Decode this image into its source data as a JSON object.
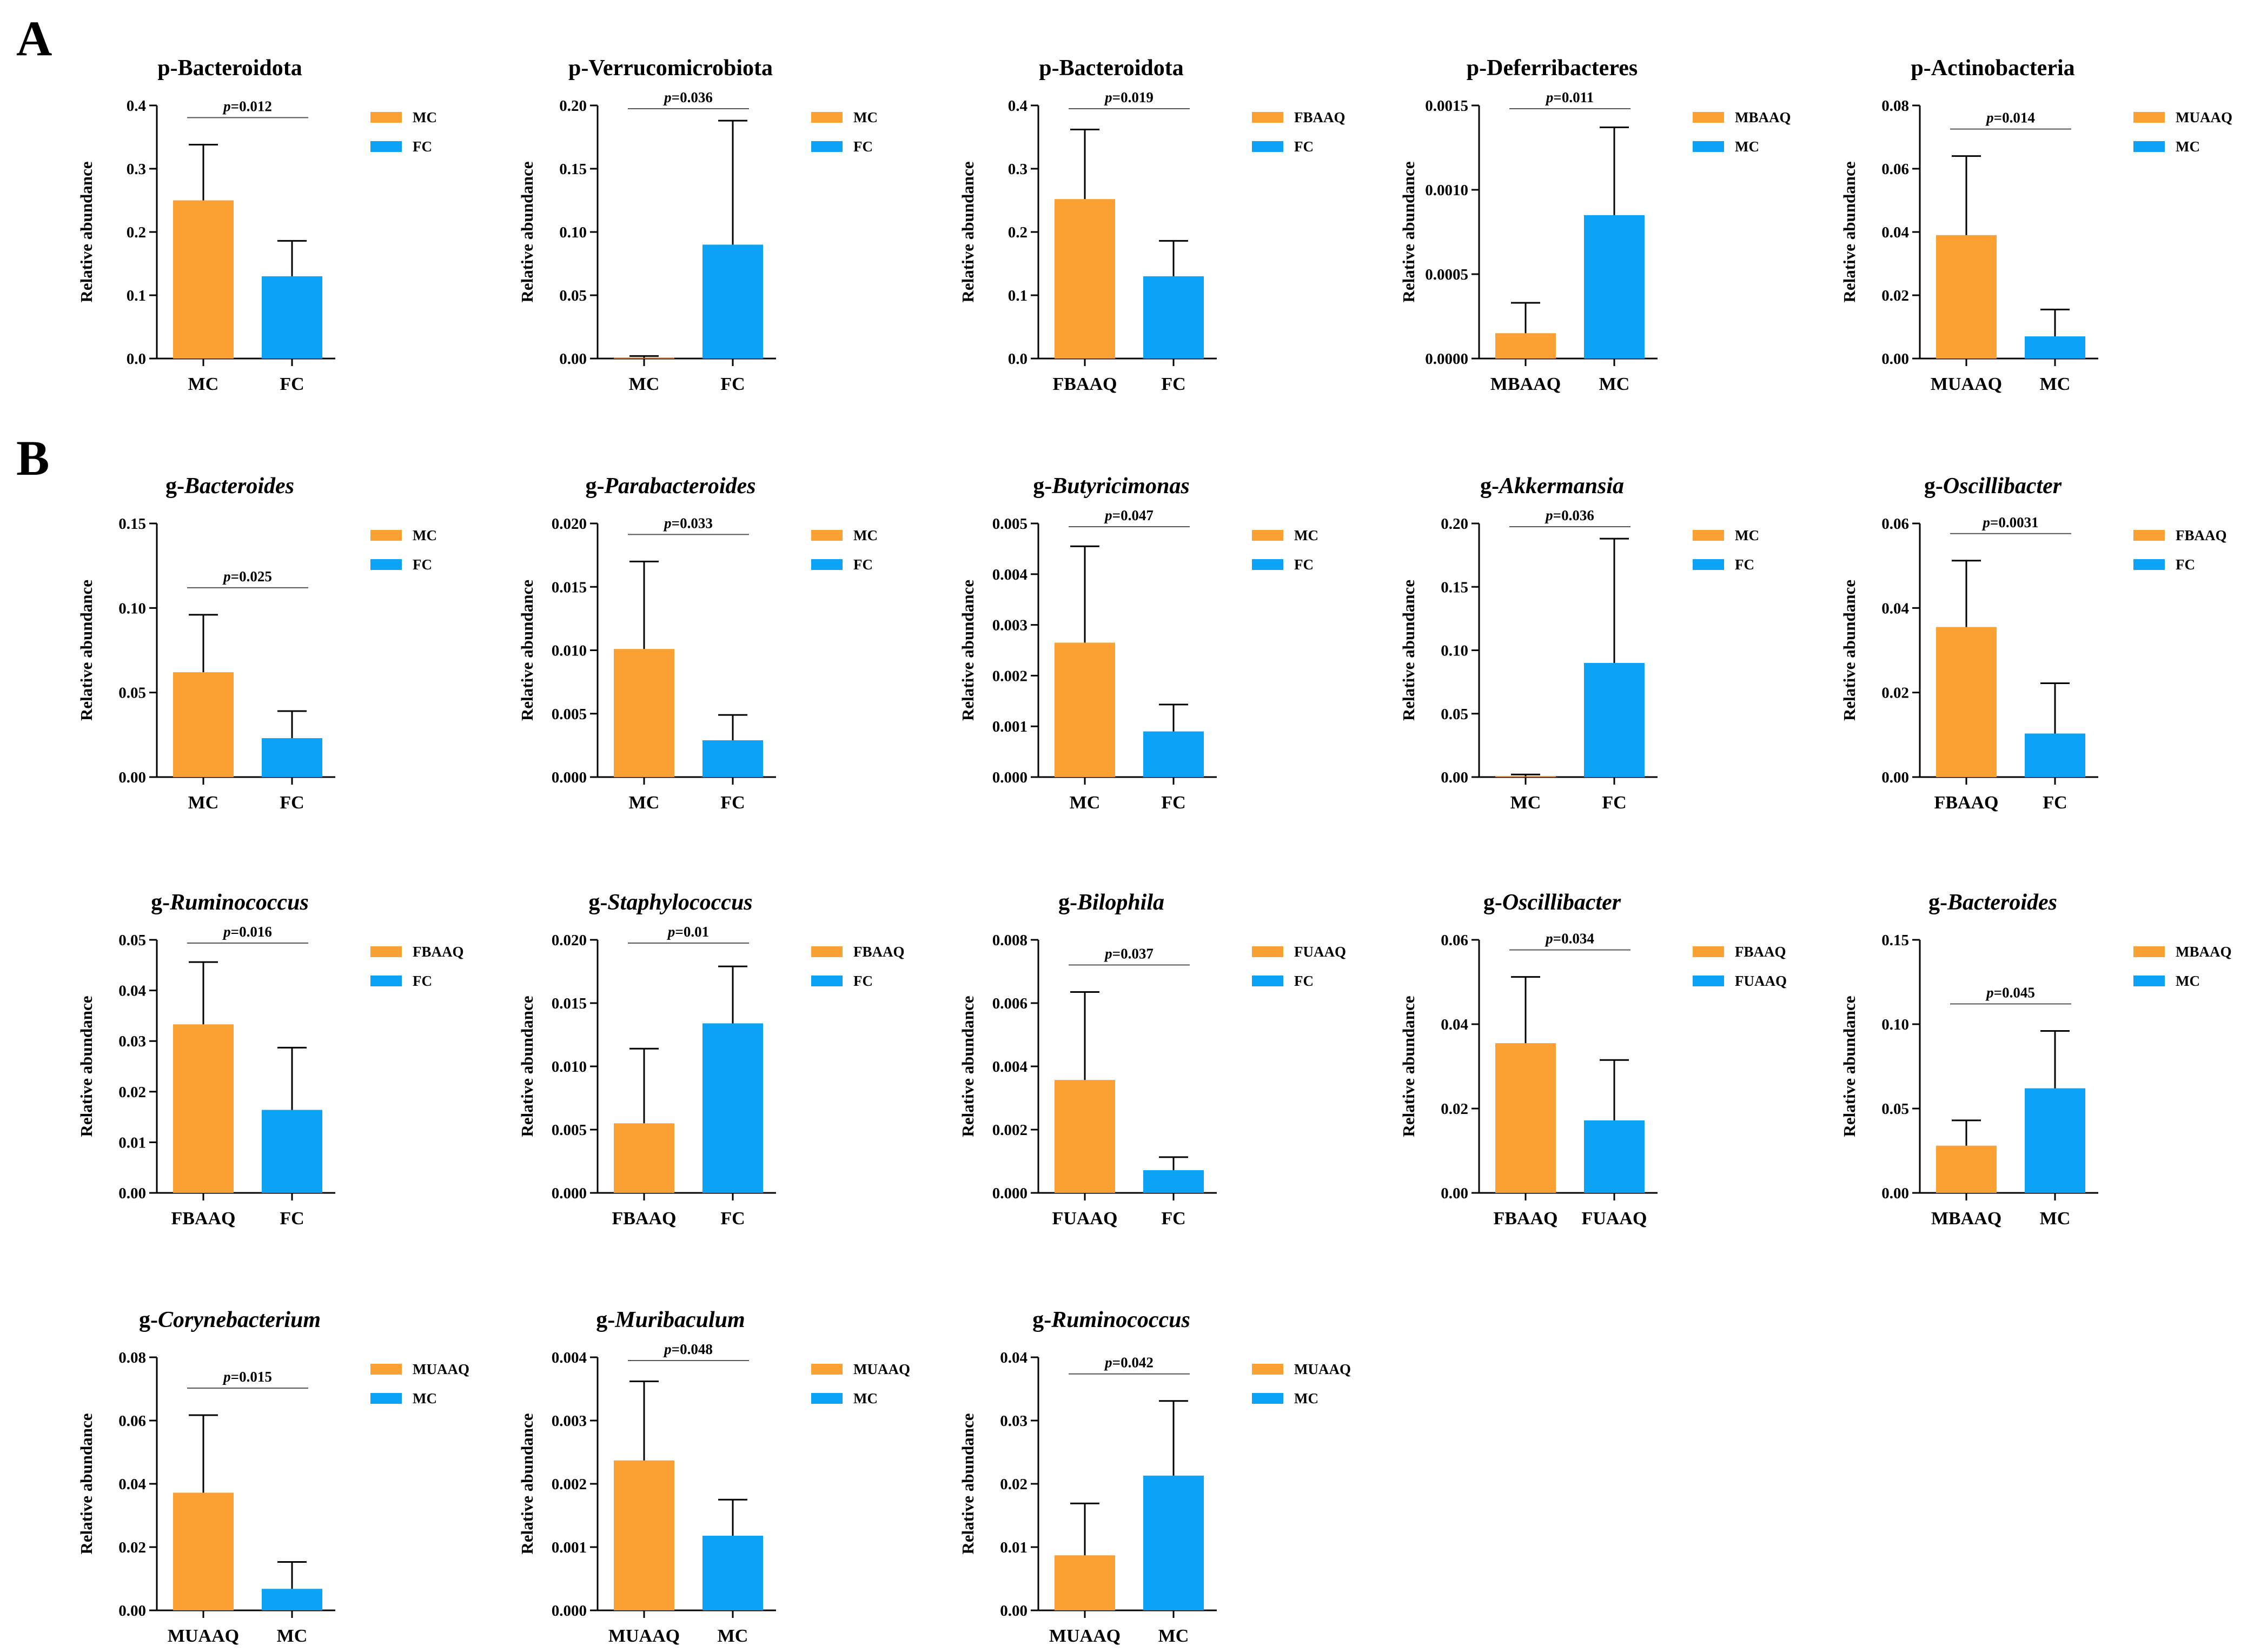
{
  "panel_labels": [
    "A",
    "B"
  ],
  "colors": {
    "series1": "#FBA033",
    "series2": "#0CA3F6",
    "axis": "#000000"
  },
  "chart_data": [
    {
      "panel": "A",
      "type": "bar",
      "title_prefix": "p-",
      "title_name": "Bacteroidota",
      "title_italic": false,
      "categories": [
        "MC",
        "FC"
      ],
      "values": [
        0.25,
        0.13
      ],
      "errors": [
        0.338,
        0.186
      ],
      "ylabel": "Relative abundance",
      "ylim": [
        0,
        0.4
      ],
      "yticks": [
        "0.0",
        "0.1",
        "0.2",
        "0.3",
        "0.4"
      ],
      "pvalue": "0.012",
      "legend": [
        "MC",
        "FC"
      ],
      "grid": false
    },
    {
      "panel": "A",
      "type": "bar",
      "title_prefix": "p-",
      "title_name": "Verrucomicrobiota",
      "title_italic": false,
      "categories": [
        "MC",
        "FC"
      ],
      "values": [
        0.0005,
        0.09
      ],
      "errors": [
        0.002,
        0.188
      ],
      "ylabel": "Relative abundance",
      "ylim": [
        0,
        0.2
      ],
      "yticks": [
        "0.00",
        "0.05",
        "0.10",
        "0.15",
        "0.20"
      ],
      "pvalue": "0.036",
      "legend": [
        "MC",
        "FC"
      ],
      "grid": false
    },
    {
      "panel": "A",
      "type": "bar",
      "title_prefix": "p-",
      "title_name": "Bacteroidota",
      "title_italic": false,
      "categories": [
        "FBAAQ",
        "FC"
      ],
      "values": [
        0.252,
        0.13
      ],
      "errors": [
        0.362,
        0.186
      ],
      "ylabel": "Relative abundance",
      "ylim": [
        0,
        0.4
      ],
      "yticks": [
        "0.0",
        "0.1",
        "0.2",
        "0.3",
        "0.4"
      ],
      "pvalue": "0.019",
      "legend": [
        "FBAAQ",
        "FC"
      ],
      "grid": false
    },
    {
      "panel": "A",
      "type": "bar",
      "title_prefix": "p-",
      "title_name": "Deferribacteres",
      "title_italic": false,
      "categories": [
        "MBAAQ",
        "MC"
      ],
      "values": [
        0.00015,
        0.00085
      ],
      "errors": [
        0.00033,
        0.00137
      ],
      "ylabel": "Relative abundance",
      "ylim": [
        0,
        0.0015
      ],
      "yticks": [
        "0.0000",
        "0.0005",
        "0.0010",
        "0.0015"
      ],
      "pvalue": "0.011",
      "legend": [
        "MBAAQ",
        "MC"
      ],
      "grid": false
    },
    {
      "panel": "A",
      "type": "bar",
      "title_prefix": "p-",
      "title_name": "Actinobacteria",
      "title_italic": false,
      "categories": [
        "MUAAQ",
        "MC"
      ],
      "values": [
        0.039,
        0.007
      ],
      "errors": [
        0.064,
        0.0155
      ],
      "ylabel": "Relative abundance",
      "ylim": [
        0,
        0.08
      ],
      "yticks": [
        "0.00",
        "0.02",
        "0.04",
        "0.06",
        "0.08"
      ],
      "pvalue": "0.014",
      "legend": [
        "MUAAQ",
        "MC"
      ],
      "grid": false
    },
    {
      "panel": "B",
      "type": "bar",
      "title_prefix": "g-",
      "title_name": "Bacteroides",
      "title_italic": true,
      "categories": [
        "MC",
        "FC"
      ],
      "values": [
        0.062,
        0.023
      ],
      "errors": [
        0.096,
        0.039
      ],
      "ylabel": "Relative abundance",
      "ylim": [
        0,
        0.15
      ],
      "yticks": [
        "0.00",
        "0.05",
        "0.10",
        "0.15"
      ],
      "pvalue": "0.025",
      "legend": [
        "MC",
        "FC"
      ],
      "grid": false
    },
    {
      "panel": "B",
      "type": "bar",
      "title_prefix": "g-",
      "title_name": "Parabacteroides",
      "title_italic": true,
      "categories": [
        "MC",
        "FC"
      ],
      "values": [
        0.0101,
        0.0029
      ],
      "errors": [
        0.017,
        0.0049
      ],
      "ylabel": "Relative abundance",
      "ylim": [
        0,
        0.02
      ],
      "yticks": [
        "0.000",
        "0.005",
        "0.010",
        "0.015",
        "0.020"
      ],
      "pvalue": "0.033",
      "legend": [
        "MC",
        "FC"
      ],
      "grid": false
    },
    {
      "panel": "B",
      "type": "bar",
      "title_prefix": "g-",
      "title_name": "Butyricimonas",
      "title_italic": true,
      "categories": [
        "MC",
        "FC"
      ],
      "values": [
        0.00265,
        0.0009
      ],
      "errors": [
        0.00455,
        0.00143
      ],
      "ylabel": "Relative abundance",
      "ylim": [
        0,
        0.005
      ],
      "yticks": [
        "0.000",
        "0.001",
        "0.002",
        "0.003",
        "0.004",
        "0.005"
      ],
      "pvalue": "0.047",
      "legend": [
        "MC",
        "FC"
      ],
      "grid": false
    },
    {
      "panel": "B",
      "type": "bar",
      "title_prefix": "g-",
      "title_name": "Akkermansia",
      "title_italic": true,
      "categories": [
        "MC",
        "FC"
      ],
      "values": [
        0.0005,
        0.09
      ],
      "errors": [
        0.002,
        0.188
      ],
      "ylabel": "Relative abundance",
      "ylim": [
        0,
        0.2
      ],
      "yticks": [
        "0.00",
        "0.05",
        "0.10",
        "0.15",
        "0.20"
      ],
      "pvalue": "0.036",
      "legend": [
        "MC",
        "FC"
      ],
      "grid": false
    },
    {
      "panel": "B",
      "type": "bar",
      "title_prefix": "g-",
      "title_name": "Oscillibacter",
      "title_italic": true,
      "categories": [
        "FBAAQ",
        "FC"
      ],
      "values": [
        0.0355,
        0.0103
      ],
      "errors": [
        0.0512,
        0.0222
      ],
      "ylabel": "Relative abundance",
      "ylim": [
        0,
        0.06
      ],
      "yticks": [
        "0.00",
        "0.02",
        "0.04",
        "0.06"
      ],
      "pvalue": "0.0031",
      "legend": [
        "FBAAQ",
        "FC"
      ],
      "grid": false
    },
    {
      "panel": "B",
      "type": "bar",
      "title_prefix": "g-",
      "title_name": "Ruminococcus",
      "title_italic": true,
      "categories": [
        "FBAAQ",
        "FC"
      ],
      "values": [
        0.0333,
        0.0164
      ],
      "errors": [
        0.0456,
        0.0287
      ],
      "ylabel": "Relative abundance",
      "ylim": [
        0,
        0.05
      ],
      "yticks": [
        "0.00",
        "0.01",
        "0.02",
        "0.03",
        "0.04",
        "0.05"
      ],
      "pvalue": "0.016",
      "legend": [
        "FBAAQ",
        "FC"
      ],
      "grid": false
    },
    {
      "panel": "B",
      "type": "bar",
      "title_prefix": "g-",
      "title_name": "Staphylococcus",
      "title_italic": true,
      "categories": [
        "FBAAQ",
        "FC"
      ],
      "values": [
        0.0055,
        0.0134
      ],
      "errors": [
        0.0114,
        0.0179
      ],
      "ylabel": "Relative abundance",
      "ylim": [
        0,
        0.02
      ],
      "yticks": [
        "0.000",
        "0.005",
        "0.010",
        "0.015",
        "0.020"
      ],
      "pvalue": "0.01",
      "legend": [
        "FBAAQ",
        "FC"
      ],
      "grid": false
    },
    {
      "panel": "B",
      "type": "bar",
      "title_prefix": "g-",
      "title_name": "Bilophila",
      "title_italic": true,
      "categories": [
        "FUAAQ",
        "FC"
      ],
      "values": [
        0.00357,
        0.00072
      ],
      "errors": [
        0.00635,
        0.00113
      ],
      "ylabel": "Relative abundance",
      "ylim": [
        0,
        0.008
      ],
      "yticks": [
        "0.000",
        "0.002",
        "0.004",
        "0.006",
        "0.008"
      ],
      "pvalue": "0.037",
      "legend": [
        "FUAAQ",
        "FC"
      ],
      "grid": false
    },
    {
      "panel": "B",
      "type": "bar",
      "title_prefix": "g-",
      "title_name": "Oscillibacter",
      "title_italic": true,
      "categories": [
        "FBAAQ",
        "FUAAQ"
      ],
      "values": [
        0.0355,
        0.0172
      ],
      "errors": [
        0.0512,
        0.0315
      ],
      "ylabel": "Relative abundance",
      "ylim": [
        0,
        0.06
      ],
      "yticks": [
        "0.00",
        "0.02",
        "0.04",
        "0.06"
      ],
      "pvalue": "0.034",
      "legend": [
        "FBAAQ",
        "FUAAQ"
      ],
      "grid": false
    },
    {
      "panel": "B",
      "type": "bar",
      "title_prefix": "g-",
      "title_name": "Bacteroides",
      "title_italic": true,
      "categories": [
        "MBAAQ",
        "MC"
      ],
      "values": [
        0.028,
        0.062
      ],
      "errors": [
        0.043,
        0.096
      ],
      "ylabel": "Relative abundance",
      "ylim": [
        0,
        0.15
      ],
      "yticks": [
        "0.00",
        "0.05",
        "0.10",
        "0.15"
      ],
      "pvalue": "0.045",
      "legend": [
        "MBAAQ",
        "MC"
      ],
      "grid": false
    },
    {
      "panel": "B",
      "type": "bar",
      "title_prefix": "g-",
      "title_name": "Corynebacterium",
      "title_italic": true,
      "categories": [
        "MUAAQ",
        "MC"
      ],
      "values": [
        0.0372,
        0.0068
      ],
      "errors": [
        0.0617,
        0.0153
      ],
      "ylabel": "Relative abundance",
      "ylim": [
        0,
        0.08
      ],
      "yticks": [
        "0.00",
        "0.02",
        "0.04",
        "0.06",
        "0.08"
      ],
      "pvalue": "0.015",
      "legend": [
        "MUAAQ",
        "MC"
      ],
      "grid": false
    },
    {
      "panel": "B",
      "type": "bar",
      "title_prefix": "g-",
      "title_name": "Muribaculum",
      "title_italic": true,
      "categories": [
        "MUAAQ",
        "MC"
      ],
      "values": [
        0.00237,
        0.00118
      ],
      "errors": [
        0.00362,
        0.00175
      ],
      "ylabel": "Relative abundance",
      "ylim": [
        0,
        0.004
      ],
      "yticks": [
        "0.000",
        "0.001",
        "0.002",
        "0.003",
        "0.004"
      ],
      "pvalue": "0.048",
      "legend": [
        "MUAAQ",
        "MC"
      ],
      "grid": false
    },
    {
      "panel": "B",
      "type": "bar",
      "title_prefix": "g-",
      "title_name": "Ruminococcus",
      "title_italic": true,
      "categories": [
        "MUAAQ",
        "MC"
      ],
      "values": [
        0.0087,
        0.0213
      ],
      "errors": [
        0.0169,
        0.0331
      ],
      "ylabel": "Relative abundance",
      "ylim": [
        0,
        0.04
      ],
      "yticks": [
        "0.00",
        "0.01",
        "0.02",
        "0.03",
        "0.04"
      ],
      "pvalue": "0.042",
      "legend": [
        "MUAAQ",
        "MC"
      ],
      "grid": false
    }
  ]
}
